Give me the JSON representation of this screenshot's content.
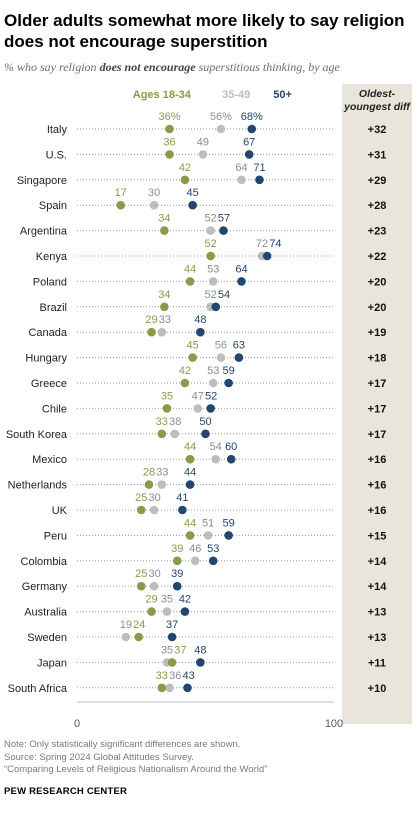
{
  "title": "Older adults somewhat more likely to say religion does not encourage superstition",
  "subtitle_parts": [
    "% who say religion ",
    "does not encourage",
    " superstitious thinking, by age"
  ],
  "notes": [
    "Note: Only statistically significant differences are shown.",
    "Source: Spring 2024 Global Attitudes Survey.",
    "“Comparing Levels of Religious Nationalism Around the World”"
  ],
  "brand": "PEW RESEARCH CENTER",
  "colors": {
    "young": "#8a9a48",
    "mid": "#bdbdbd",
    "old": "#22466f",
    "diff_bg": "#e9e5da",
    "dots_line": "#9a9a9a"
  },
  "chart_data": {
    "type": "scatter",
    "xlim": [
      0,
      100
    ],
    "ticks": [
      0,
      100
    ],
    "series": [
      {
        "name": "Ages 18-34",
        "color": "#8a9a48"
      },
      {
        "name": "35-49",
        "color": "#bdbdbd"
      },
      {
        "name": "50+",
        "color": "#22466f"
      }
    ],
    "diff_header": [
      "Oldest-",
      "youngest diff"
    ],
    "rows": [
      {
        "country": "Italy",
        "young": 36,
        "mid": 56,
        "old": 68,
        "diff": "+32",
        "pct": true
      },
      {
        "country": "U.S.",
        "young": 36,
        "mid": 49,
        "old": 67,
        "diff": "+31"
      },
      {
        "country": "Singapore",
        "young": 42,
        "mid": 64,
        "old": 71,
        "diff": "+29"
      },
      {
        "country": "Spain",
        "young": 17,
        "mid": 30,
        "old": 45,
        "diff": "+28"
      },
      {
        "country": "Argentina",
        "young": 34,
        "mid": 52,
        "old": 57,
        "diff": "+23"
      },
      {
        "country": "Kenya",
        "young": 52,
        "mid": 72,
        "old": 74,
        "diff": "+22"
      },
      {
        "country": "Poland",
        "young": 44,
        "mid": 53,
        "old": 64,
        "diff": "+20"
      },
      {
        "country": "Brazil",
        "young": 34,
        "mid": 52,
        "old": 54,
        "diff": "+20"
      },
      {
        "country": "Canada",
        "young": 29,
        "mid": 33,
        "old": 48,
        "diff": "+19"
      },
      {
        "country": "Hungary",
        "young": 45,
        "mid": 56,
        "old": 63,
        "diff": "+18"
      },
      {
        "country": "Greece",
        "young": 42,
        "mid": 53,
        "old": 59,
        "diff": "+17"
      },
      {
        "country": "Chile",
        "young": 35,
        "mid": 47,
        "old": 52,
        "diff": "+17"
      },
      {
        "country": "South Korea",
        "young": 33,
        "mid": 38,
        "old": 50,
        "diff": "+17"
      },
      {
        "country": "Mexico",
        "young": 44,
        "mid": 54,
        "old": 60,
        "diff": "+16"
      },
      {
        "country": "Netherlands",
        "young": 28,
        "mid": 33,
        "old": 44,
        "diff": "+16"
      },
      {
        "country": "UK",
        "young": 25,
        "mid": 30,
        "old": 41,
        "diff": "+16"
      },
      {
        "country": "Peru",
        "young": 44,
        "mid": 51,
        "old": 59,
        "diff": "+15"
      },
      {
        "country": "Colombia",
        "young": 39,
        "mid": 46,
        "old": 53,
        "diff": "+14"
      },
      {
        "country": "Germany",
        "young": 25,
        "mid": 30,
        "old": 39,
        "diff": "+14"
      },
      {
        "country": "Australia",
        "young": 29,
        "mid": 35,
        "old": 42,
        "diff": "+13"
      },
      {
        "country": "Sweden",
        "young": 24,
        "mid": 19,
        "old": 37,
        "diff": "+13"
      },
      {
        "country": "Japan",
        "young": 37,
        "mid": 35,
        "old": 48,
        "diff": "+11"
      },
      {
        "country": "South Africa",
        "young": 33,
        "mid": 36,
        "old": 43,
        "diff": "+10"
      }
    ]
  }
}
